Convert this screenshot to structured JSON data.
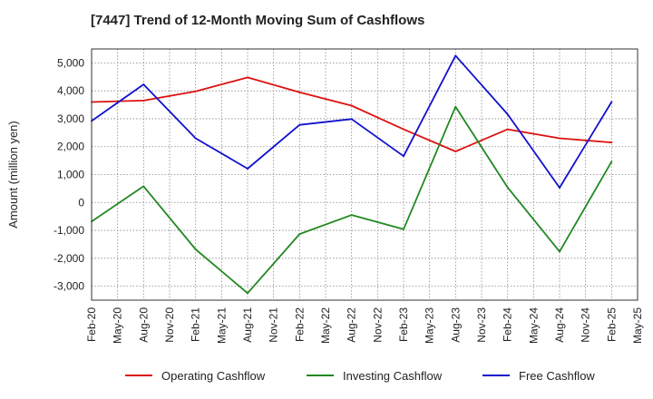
{
  "chart_data": {
    "type": "line",
    "title": "[7447]  Trend of 12-Month Moving Sum of Cashflows",
    "ylabel": "Amount (million yen)",
    "xlabel": "",
    "ylim": [
      -3500,
      5500
    ],
    "yticks": [
      5000,
      4000,
      3000,
      2000,
      1000,
      0,
      -1000,
      -2000,
      -3000
    ],
    "ytick_labels": [
      "5,000",
      "4,000",
      "3,000",
      "2,000",
      "1,000",
      "0",
      "-1,000",
      "-2,000",
      "-3,000"
    ],
    "categories": [
      "Feb-20",
      "May-20",
      "Aug-20",
      "Nov-20",
      "Feb-21",
      "May-21",
      "Aug-21",
      "Nov-21",
      "Feb-22",
      "May-22",
      "Aug-22",
      "Nov-22",
      "Feb-23",
      "May-23",
      "Aug-23",
      "Nov-23",
      "Feb-24",
      "May-24",
      "Aug-24",
      "Nov-24",
      "Feb-25",
      "May-25"
    ],
    "grid": true,
    "legend_position": "bottom",
    "series": [
      {
        "name": "Operating Cashflow",
        "color": "#dd1111",
        "points": [
          [
            "Feb-20",
            3600
          ],
          [
            "Aug-20",
            3650
          ],
          [
            "Feb-21",
            3980
          ],
          [
            "Aug-21",
            4480
          ],
          [
            "Feb-22",
            3950
          ],
          [
            "Aug-22",
            3470
          ],
          [
            "Feb-23",
            2620
          ],
          [
            "Aug-23",
            1830
          ],
          [
            "Feb-24",
            2620
          ],
          [
            "Aug-24",
            2300
          ],
          [
            "Feb-25",
            2150
          ]
        ]
      },
      {
        "name": "Investing Cashflow",
        "color": "#228822",
        "points": [
          [
            "Feb-20",
            -680
          ],
          [
            "Aug-20",
            580
          ],
          [
            "Feb-21",
            -1680
          ],
          [
            "Aug-21",
            -3250
          ],
          [
            "Feb-22",
            -1130
          ],
          [
            "Aug-22",
            -450
          ],
          [
            "Feb-23",
            -960
          ],
          [
            "Aug-23",
            3430
          ],
          [
            "Feb-24",
            540
          ],
          [
            "Aug-24",
            -1760
          ],
          [
            "Feb-25",
            1460
          ]
        ]
      },
      {
        "name": "Free Cashflow",
        "color": "#1111cc",
        "points": [
          [
            "Feb-20",
            2920
          ],
          [
            "Aug-20",
            4230
          ],
          [
            "Feb-21",
            2300
          ],
          [
            "Aug-21",
            1210
          ],
          [
            "Feb-22",
            2780
          ],
          [
            "Aug-22",
            2990
          ],
          [
            "Feb-23",
            1660
          ],
          [
            "Aug-23",
            5260
          ],
          [
            "Feb-24",
            3160
          ],
          [
            "Aug-24",
            530
          ],
          [
            "Feb-25",
            3600
          ]
        ]
      }
    ]
  }
}
